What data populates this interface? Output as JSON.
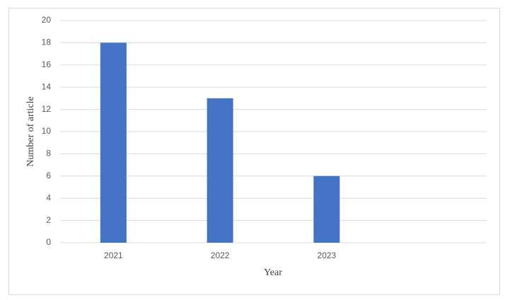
{
  "chart_data": {
    "type": "bar",
    "categories": [
      "2021",
      "2022",
      "2023",
      null
    ],
    "values": [
      18,
      13,
      6,
      null
    ],
    "color": "#4472c4",
    "x_label": "Year",
    "y_label": "Number of article",
    "ylim": [
      0,
      20
    ],
    "yticks": [
      0,
      2,
      4,
      6,
      8,
      10,
      12,
      14,
      16,
      18,
      20
    ],
    "grid": true
  }
}
